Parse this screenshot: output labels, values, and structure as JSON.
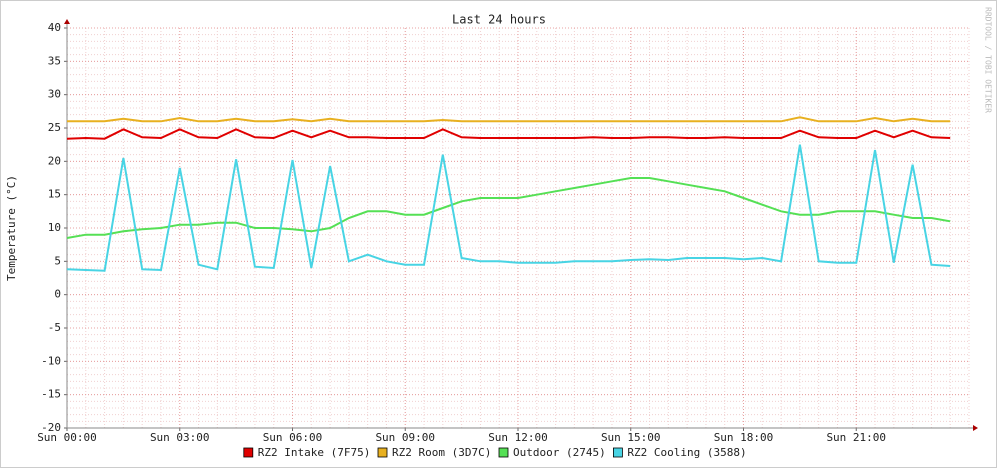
{
  "chart_data": {
    "type": "line",
    "title": "Last 24 hours",
    "y_label": "Temperature (°C)",
    "watermark": "RRDTOOL / TOBI OETIKER",
    "x": [
      0,
      0.5,
      1,
      1.5,
      2,
      2.5,
      3,
      3.5,
      4,
      4.5,
      5,
      5.5,
      6,
      6.5,
      7,
      7.5,
      8,
      8.5,
      9,
      9.5,
      10,
      10.5,
      11,
      11.5,
      12,
      12.5,
      13,
      13.5,
      14,
      14.5,
      15,
      15.5,
      16,
      16.5,
      17,
      17.5,
      18,
      18.5,
      19,
      19.5,
      20,
      20.5,
      21,
      21.5,
      22,
      22.5,
      23,
      23.5
    ],
    "xlim": [
      0,
      24
    ],
    "xticks": [
      {
        "value": 0,
        "label": "Sun 00:00"
      },
      {
        "value": 3,
        "label": "Sun 03:00"
      },
      {
        "value": 6,
        "label": "Sun 06:00"
      },
      {
        "value": 9,
        "label": "Sun 09:00"
      },
      {
        "value": 12,
        "label": "Sun 12:00"
      },
      {
        "value": 15,
        "label": "Sun 15:00"
      },
      {
        "value": 18,
        "label": "Sun 18:00"
      },
      {
        "value": 21,
        "label": "Sun 21:00"
      }
    ],
    "ylim": [
      -20,
      40
    ],
    "yticks": [
      -20,
      -15,
      -10,
      -5,
      0,
      5,
      10,
      15,
      20,
      25,
      30,
      35,
      40
    ],
    "grid": true,
    "series": [
      {
        "name": "RZ2 Intake (7F75)",
        "color": "#e00000",
        "values": [
          23.4,
          23.5,
          23.4,
          24.8,
          23.6,
          23.5,
          24.8,
          23.6,
          23.5,
          24.8,
          23.6,
          23.5,
          24.6,
          23.6,
          24.6,
          23.6,
          23.6,
          23.5,
          23.5,
          23.5,
          24.8,
          23.6,
          23.5,
          23.5,
          23.5,
          23.5,
          23.5,
          23.5,
          23.6,
          23.5,
          23.5,
          23.6,
          23.6,
          23.5,
          23.5,
          23.6,
          23.5,
          23.5,
          23.5,
          24.6,
          23.6,
          23.5,
          23.5,
          24.6,
          23.6,
          24.6,
          23.6,
          23.5
        ]
      },
      {
        "name": "RZ2 Room (3D7C)",
        "color": "#e8b020",
        "values": [
          26,
          26,
          26,
          26.4,
          26,
          26,
          26.5,
          26,
          26,
          26.4,
          26,
          26,
          26.3,
          26,
          26.4,
          26,
          26,
          26,
          26,
          26,
          26.2,
          26,
          26,
          26,
          26,
          26,
          26,
          26,
          26,
          26,
          26,
          26,
          26,
          26,
          26,
          26,
          26,
          26,
          26,
          26.6,
          26,
          26,
          26,
          26.5,
          26,
          26.4,
          26,
          26
        ]
      },
      {
        "name": "Outdoor (2745)",
        "color": "#55e055",
        "values": [
          8.5,
          9,
          9,
          9.5,
          9.8,
          10,
          10.5,
          10.5,
          10.8,
          10.8,
          10,
          10,
          9.8,
          9.5,
          10,
          11.5,
          12.5,
          12.5,
          12,
          12,
          13,
          14,
          14.5,
          14.5,
          14.5,
          15,
          15.5,
          16,
          16.5,
          17,
          17.5,
          17.5,
          17,
          16.5,
          16,
          15.5,
          14.5,
          13.5,
          12.5,
          12,
          12,
          12.5,
          12.5,
          12.5,
          12,
          11.5,
          11.5,
          11
        ]
      },
      {
        "name": "RZ2 Cooling (3588)",
        "color": "#48d4e4",
        "values": [
          3.8,
          3.7,
          3.6,
          20.5,
          3.8,
          3.7,
          19,
          4.5,
          3.8,
          20.3,
          4.2,
          4,
          20.2,
          4,
          19.3,
          5,
          6,
          5,
          4.5,
          4.5,
          21,
          5.5,
          5,
          5,
          4.8,
          4.8,
          4.8,
          5,
          5,
          5,
          5.2,
          5.3,
          5.2,
          5.5,
          5.5,
          5.5,
          5.3,
          5.5,
          5,
          22.5,
          5,
          4.8,
          4.8,
          21.7,
          4.8,
          19.5,
          4.5,
          4.3
        ]
      }
    ]
  }
}
